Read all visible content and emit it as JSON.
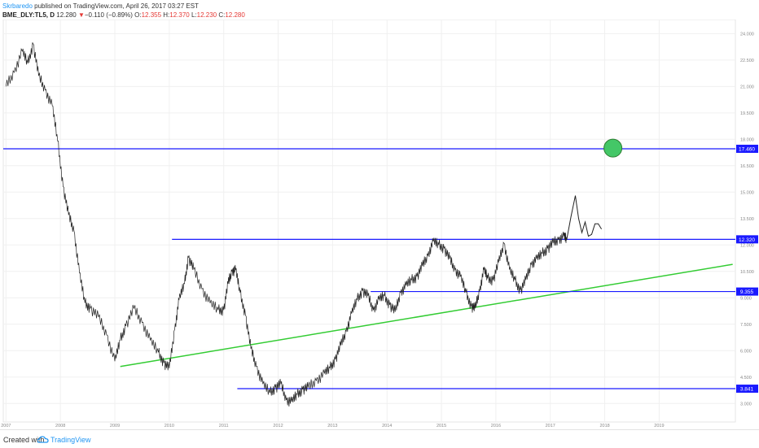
{
  "header": {
    "author": "Skrbaredo",
    "published": "published on TradingView.com, April 26, 2017 03:27 EST",
    "symbol": "BME_DLY:TL5, D",
    "last": "12.280",
    "arrow": "▼",
    "change": "−0.110 (−0.89%)",
    "o_label": "O:",
    "o": "12.355",
    "h_label": "H:",
    "h": "12.370",
    "l_label": "L:",
    "l": "12.230",
    "c_label": "C:",
    "c": "12.280"
  },
  "footer": {
    "created": "Created with",
    "brand": "TradingView"
  },
  "chart_data": {
    "type": "line",
    "title": "",
    "x_tick_labels": [
      "2007",
      "2008",
      "2009",
      "2010",
      "2011",
      "2012",
      "2013",
      "2014",
      "2015",
      "2016",
      "2017",
      "2018",
      "2019"
    ],
    "x_ticks": [
      2007.0,
      2008.0,
      2009.0,
      2010.0,
      2011.0,
      2012.0,
      2013.0,
      2014.0,
      2015.0,
      2016.0,
      2017.0,
      2018.0,
      2019.0
    ],
    "xlim": [
      2006.95,
      2020.4
    ],
    "y_tick_labels": [
      "24.000",
      "22.500",
      "21.000",
      "19.500",
      "18.000",
      "16.500",
      "15.000",
      "13.500",
      "12.000",
      "10.500",
      "9.000",
      "7.500",
      "6.000",
      "4.500",
      "3.000"
    ],
    "y_ticks": [
      24.0,
      22.5,
      21.0,
      19.5,
      18.0,
      16.5,
      15.0,
      13.5,
      12.0,
      10.5,
      9.0,
      7.5,
      6.0,
      4.5,
      3.0
    ],
    "ylim": [
      1.95,
      24.8
    ],
    "price_color": "#222222",
    "price_series": {
      "name": "",
      "x": [
        2007.0,
        2007.15,
        2007.3,
        2007.4,
        2007.5,
        2007.6,
        2007.72,
        2007.85,
        2007.95,
        2008.05,
        2008.15,
        2008.25,
        2008.35,
        2008.45,
        2008.55,
        2008.7,
        2008.85,
        2009.0,
        2009.1,
        2009.2,
        2009.35,
        2009.5,
        2009.65,
        2009.8,
        2009.9,
        2010.0,
        2010.1,
        2010.18,
        2010.28,
        2010.35,
        2010.45,
        2010.6,
        2010.75,
        2010.9,
        2011.0,
        2011.08,
        2011.15,
        2011.22,
        2011.3,
        2011.4,
        2011.5,
        2011.6,
        2011.72,
        2011.85,
        2011.95,
        2012.05,
        2012.15,
        2012.25,
        2012.35,
        2012.45,
        2012.55,
        2012.7,
        2012.85,
        2012.95,
        2013.05,
        2013.15,
        2013.25,
        2013.35,
        2013.45,
        2013.55,
        2013.65,
        2013.75,
        2013.85,
        2013.95,
        2014.05,
        2014.15,
        2014.25,
        2014.35,
        2014.45,
        2014.55,
        2014.65,
        2014.75,
        2014.85,
        2014.95,
        2015.05,
        2015.15,
        2015.25,
        2015.35,
        2015.45,
        2015.55,
        2015.62,
        2015.7,
        2015.78,
        2015.85,
        2015.95,
        2016.05,
        2016.15,
        2016.25,
        2016.35,
        2016.45,
        2016.55,
        2016.65,
        2016.75,
        2016.85,
        2016.95,
        2017.05,
        2017.15,
        2017.25,
        2017.3
      ],
      "values": [
        21.0,
        21.8,
        23.0,
        22.3,
        23.4,
        21.6,
        20.8,
        19.9,
        17.9,
        15.3,
        13.7,
        12.8,
        10.4,
        8.7,
        8.4,
        7.9,
        6.9,
        5.4,
        6.6,
        7.4,
        8.4,
        7.6,
        6.6,
        5.9,
        5.3,
        5.0,
        7.2,
        8.9,
        9.8,
        11.3,
        10.6,
        9.5,
        8.7,
        8.3,
        8.3,
        9.8,
        10.5,
        10.6,
        9.3,
        8.0,
        6.1,
        5.1,
        4.1,
        3.6,
        3.9,
        4.1,
        3.2,
        3.1,
        3.5,
        3.8,
        3.9,
        4.3,
        4.7,
        5.0,
        5.5,
        6.3,
        7.1,
        8.1,
        8.9,
        9.4,
        9.1,
        8.3,
        8.9,
        9.1,
        8.6,
        8.2,
        9.3,
        9.7,
        10.0,
        10.2,
        10.8,
        11.4,
        12.2,
        12.0,
        11.8,
        11.2,
        10.6,
        10.2,
        9.3,
        8.5,
        8.4,
        9.4,
        10.6,
        10.1,
        10.0,
        11.0,
        12.1,
        10.6,
        10.0,
        9.4,
        10.0,
        10.9,
        11.2,
        11.5,
        11.8,
        12.1,
        12.3,
        12.5,
        12.28
      ]
    },
    "projection": {
      "x": [
        2017.3,
        2017.38,
        2017.46,
        2017.52,
        2017.58,
        2017.64,
        2017.7,
        2017.76,
        2017.82,
        2017.88,
        2017.94
      ],
      "values": [
        12.28,
        13.6,
        14.8,
        13.5,
        12.7,
        13.3,
        12.5,
        12.6,
        13.2,
        13.2,
        12.9
      ],
      "color": "#222222"
    },
    "horizontal_levels": [
      {
        "value": 17.46,
        "label": "17.460",
        "x_start": 2006.95,
        "x_end": 2020.4,
        "color": "#1a1aff"
      },
      {
        "value": 12.32,
        "label": "12.320",
        "x_start": 2010.05,
        "x_end": 2020.4,
        "color": "#1a1aff"
      },
      {
        "value": 9.355,
        "label": "9.355",
        "x_start": 2013.7,
        "x_end": 2020.4,
        "color": "#1a1aff"
      },
      {
        "value": 3.841,
        "label": "3.841",
        "x_start": 2011.25,
        "x_end": 2020.4,
        "color": "#1a1aff"
      }
    ],
    "trendline": {
      "x": [
        2009.1,
        2020.35
      ],
      "values": [
        5.1,
        10.9
      ],
      "color": "#33cc33"
    },
    "target_circle": {
      "x": 2018.15,
      "value": 17.5,
      "color": "#44c767"
    },
    "grid": true,
    "colors": {
      "grid": "#f0f0f0",
      "axis_text": "#888888",
      "level_label_bg": "#1a1aff"
    }
  }
}
